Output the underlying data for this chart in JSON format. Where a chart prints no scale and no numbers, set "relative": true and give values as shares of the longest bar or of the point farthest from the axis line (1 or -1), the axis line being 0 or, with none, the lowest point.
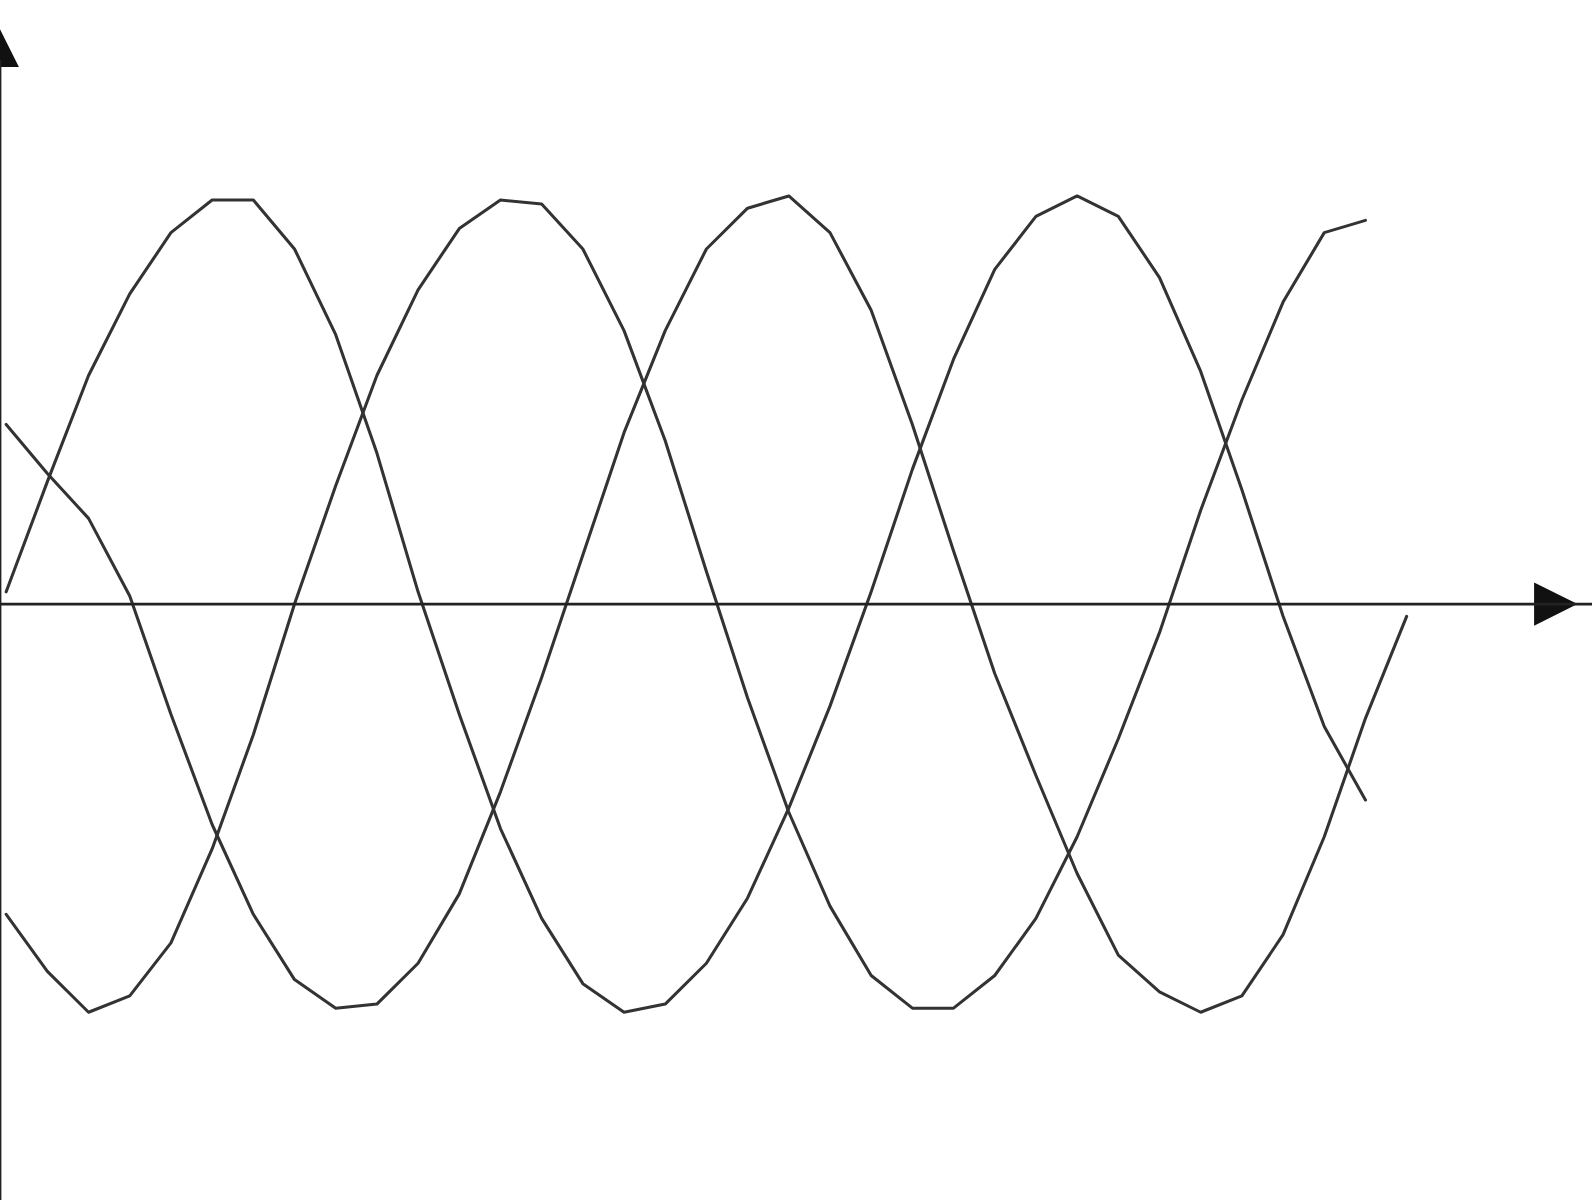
{
  "chart_data": {
    "type": "line",
    "relative": true,
    "categories": [
      null,
      null,
      null,
      null,
      null,
      null,
      null,
      null,
      null,
      null,
      null,
      null,
      null,
      null,
      null,
      null,
      null,
      null,
      null,
      null,
      null,
      null,
      null,
      null,
      null,
      null,
      null,
      null,
      null,
      null,
      null,
      null,
      null,
      null,
      null
    ],
    "series": [
      {
        "color": "#333333",
        "values": [
          0.03,
          0.3,
          0.56,
          0.76,
          0.91,
          0.99,
          0.99,
          0.87,
          0.66,
          0.37,
          0.03,
          -0.27,
          -0.55,
          -0.77,
          -0.93,
          -1.0,
          -0.98,
          -0.88,
          -0.72,
          -0.5,
          -0.25,
          0.03,
          0.33,
          0.6,
          0.82,
          0.95,
          1.0,
          0.95,
          0.8,
          0.57,
          0.28,
          -0.03,
          -0.3,
          -0.48,
          null
        ]
      },
      {
        "color": "#333333",
        "values": [
          0.44,
          0.32,
          0.21,
          0.02,
          -0.27,
          -0.54,
          -0.76,
          -0.92,
          -0.99,
          -0.98,
          -0.88,
          -0.71,
          -0.46,
          -0.18,
          0.12,
          0.42,
          0.67,
          0.87,
          0.97,
          1.0,
          0.91,
          0.72,
          0.44,
          0.13,
          -0.17,
          -0.42,
          -0.66,
          -0.86,
          -0.95,
          -1.0,
          -0.96,
          -0.81,
          -0.57,
          -0.28,
          -0.03
        ]
      },
      {
        "color": "#333333",
        "values": [
          -0.76,
          -0.9,
          -1.0,
          -0.96,
          -0.83,
          -0.6,
          -0.32,
          0.0,
          0.29,
          0.56,
          0.77,
          0.92,
          0.99,
          0.98,
          0.87,
          0.67,
          0.4,
          0.08,
          -0.23,
          -0.51,
          -0.74,
          -0.91,
          -0.99,
          -0.99,
          -0.91,
          -0.77,
          -0.57,
          -0.33,
          -0.07,
          0.23,
          0.5,
          0.74,
          0.91,
          0.94,
          null
        ]
      }
    ]
  }
}
